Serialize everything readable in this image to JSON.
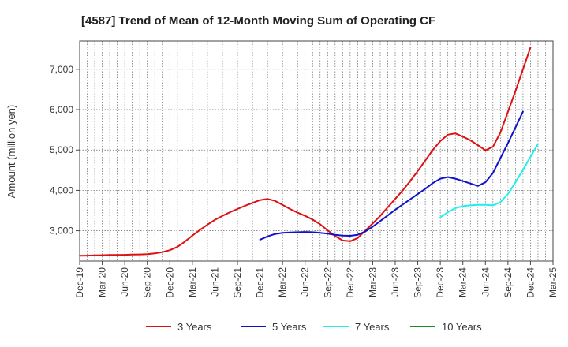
{
  "chart_data": {
    "type": "line",
    "title": "[4587]  Trend of Mean of 12-Month Moving Sum of Operating CF",
    "xlabel": "",
    "ylabel": "Amount (million yen)",
    "ylim": [
      2250,
      7700
    ],
    "yticks": [
      3000,
      4000,
      5000,
      6000,
      7000
    ],
    "ytick_labels": [
      "3,000",
      "4,000",
      "5,000",
      "6,000",
      "7,000"
    ],
    "x_tick_labels": [
      "Dec-19",
      "Mar-20",
      "Jun-20",
      "Sep-20",
      "Dec-20",
      "Mar-21",
      "Jun-21",
      "Sep-21",
      "Dec-21",
      "Mar-22",
      "Jun-22",
      "Sep-22",
      "Dec-22",
      "Mar-23",
      "Jun-23",
      "Sep-23",
      "Dec-23",
      "Mar-24",
      "Jun-24",
      "Sep-24",
      "Dec-24",
      "Mar-25"
    ],
    "grid": true,
    "series": [
      {
        "name": "3 Years",
        "color": "#dd1111",
        "start_index": 0,
        "values": [
          2380,
          2385,
          2390,
          2395,
          2400,
          2402,
          2405,
          2410,
          2415,
          2420,
          2440,
          2470,
          2520,
          2600,
          2730,
          2880,
          3020,
          3150,
          3270,
          3370,
          3460,
          3540,
          3620,
          3690,
          3760,
          3790,
          3740,
          3640,
          3540,
          3450,
          3370,
          3280,
          3160,
          3010,
          2870,
          2760,
          2740,
          2820,
          3000,
          3180,
          3370,
          3580,
          3790,
          4000,
          4230,
          4480,
          4740,
          5000,
          5220,
          5380,
          5410,
          5330,
          5240,
          5120,
          4990,
          5080,
          5430,
          5950,
          6460,
          7000,
          7540
        ]
      },
      {
        "name": "5 Years",
        "color": "#1111cc",
        "start_index": 24,
        "values": [
          2780,
          2860,
          2920,
          2950,
          2960,
          2965,
          2970,
          2965,
          2950,
          2930,
          2900,
          2880,
          2875,
          2900,
          2980,
          3100,
          3240,
          3380,
          3520,
          3650,
          3780,
          3910,
          4040,
          4180,
          4290,
          4330,
          4290,
          4230,
          4170,
          4110,
          4200,
          4430,
          4800,
          5170,
          5560,
          5950
        ]
      },
      {
        "name": "7 Years",
        "color": "#22eeee",
        "start_index": 48,
        "values": [
          3330,
          3460,
          3560,
          3610,
          3630,
          3640,
          3640,
          3630,
          3710,
          3910,
          4200,
          4510,
          4830,
          5150
        ]
      },
      {
        "name": "10 Years",
        "color": "#228822",
        "start_index": 0,
        "values": []
      }
    ]
  }
}
